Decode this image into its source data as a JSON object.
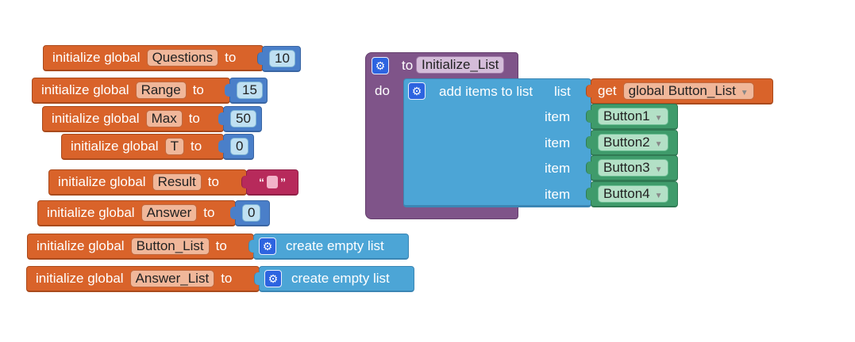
{
  "globals": [
    {
      "prefix": "initialize global",
      "name": "Questions",
      "to": "to",
      "value": "10"
    },
    {
      "prefix": "initialize global",
      "name": "Range",
      "to": "to",
      "value": "15"
    },
    {
      "prefix": "initialize global",
      "name": "Max",
      "to": "to",
      "value": "50"
    },
    {
      "prefix": "initialize global",
      "name": "T",
      "to": "to",
      "value": "0"
    },
    {
      "prefix": "initialize global",
      "name": "Result",
      "to": "to",
      "value_open": "“",
      "value_close": "”"
    },
    {
      "prefix": "initialize global",
      "name": "Answer",
      "to": "to",
      "value": "0"
    },
    {
      "prefix": "initialize global",
      "name": "Button_List",
      "to": "to",
      "value": "create empty list"
    },
    {
      "prefix": "initialize global",
      "name": "Answer_List",
      "to": "to",
      "value": "create empty list"
    }
  ],
  "procedure": {
    "to_label": "to",
    "name": "Initialize_List",
    "do_label": "do",
    "add_items": {
      "label": "add items to list",
      "list_label": "list",
      "get_label": "get",
      "get_var": "global Button_List",
      "item_label": "item",
      "items": [
        "Button1",
        "Button2",
        "Button3",
        "Button4"
      ]
    }
  },
  "icons": {
    "gear": "gear-icon",
    "dropdown": "dropdown-arrow-icon"
  },
  "colors": {
    "variables": "#d9632a",
    "lists": "#4ca5d6",
    "math": "#4a7fc9",
    "text": "#b72a5b",
    "procedures": "#7f5489",
    "components": "#3f9b6b"
  }
}
